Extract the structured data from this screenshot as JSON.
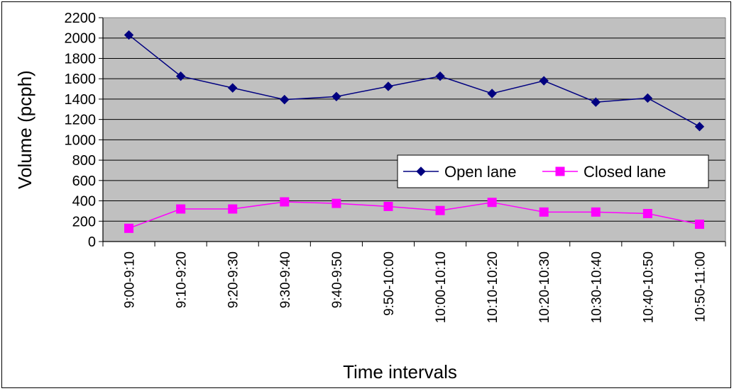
{
  "chart_data": {
    "type": "line",
    "xlabel": "Time intervals",
    "ylabel": "Volume (pcph)",
    "ylim": [
      0,
      2200
    ],
    "yticks": [
      0,
      200,
      400,
      600,
      800,
      1000,
      1200,
      1400,
      1600,
      1800,
      2000,
      2200
    ],
    "grid": "horizontal",
    "legend_position": "right",
    "background": "#c0c0c0",
    "categories": [
      "9:00-9:10",
      "9:10-9:20",
      "9:20-9:30",
      "9:30-9:40",
      "9:40-9:50",
      "9:50-10:00",
      "10:00-10:10",
      "10:10-10:20",
      "10:20-10:30",
      "10:30-10:40",
      "10:40-10:50",
      "10:50-11:00"
    ],
    "series": [
      {
        "name": "Open lane",
        "color": "#000080",
        "marker": "diamond",
        "values": [
          2030,
          1625,
          1510,
          1395,
          1425,
          1525,
          1625,
          1455,
          1580,
          1370,
          1410,
          1130
        ]
      },
      {
        "name": "Closed lane",
        "color": "#ff00ff",
        "marker": "square",
        "values": [
          130,
          320,
          320,
          390,
          375,
          345,
          305,
          385,
          290,
          290,
          275,
          170
        ]
      }
    ]
  }
}
